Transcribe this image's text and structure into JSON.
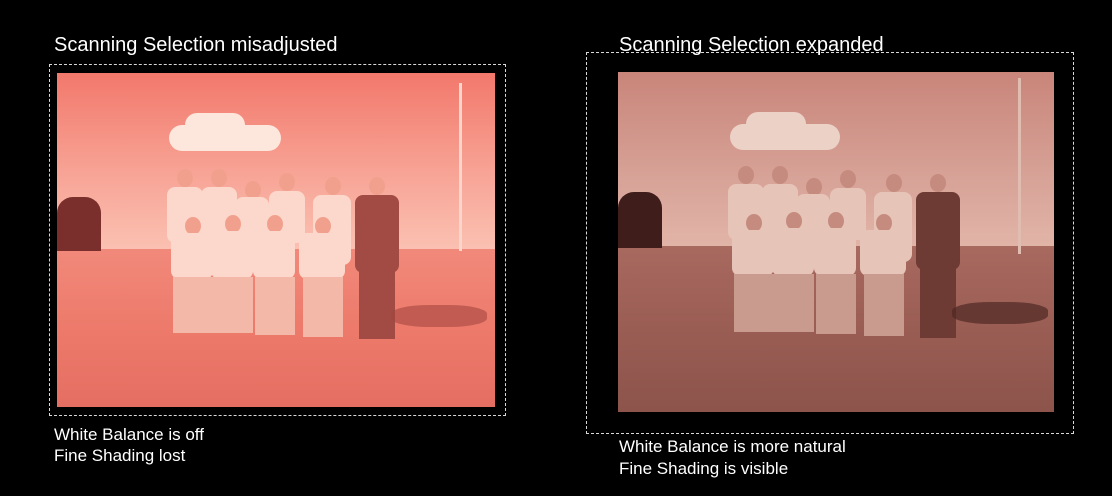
{
  "left_panel": {
    "title": "Scanning Selection misadjusted",
    "caption_line1": "White Balance is off",
    "caption_line2": "Fine Shading lost",
    "photo_description": ""
  },
  "right_panel": {
    "title": "Scanning Selection expanded",
    "caption_line1": "White Balance is more natural",
    "caption_line2": "Fine Shading is visible"
  },
  "colors": {
    "background": "#000000",
    "text": "#ffffff",
    "dashed_border": "#d9d9d9",
    "left_tint": "#f2786b",
    "right_tint": "#c9857a"
  }
}
